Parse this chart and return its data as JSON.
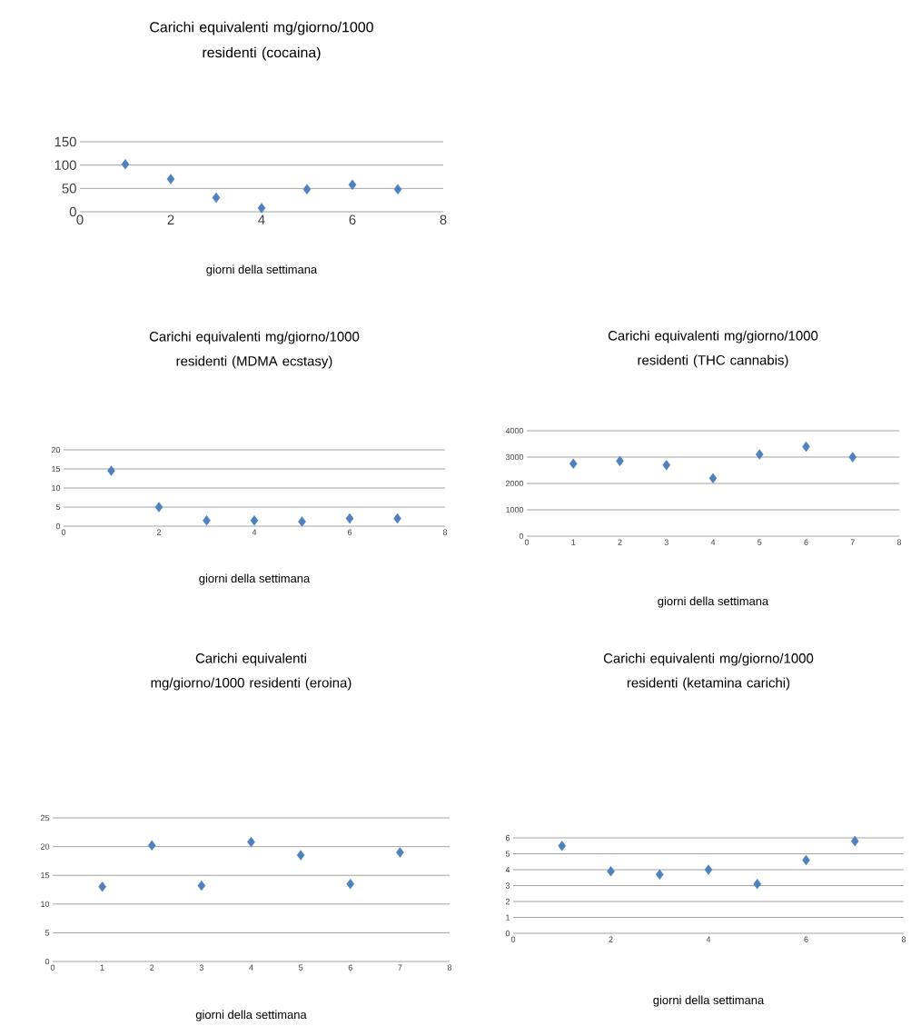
{
  "chart_data": [
    {
      "type": "scatter",
      "title": "Carichi equivalenti mg/giorno/1000 residenti (cocaina)",
      "xlabel": "giorni della settimana",
      "x": [
        1,
        2,
        3,
        4,
        5,
        6,
        7
      ],
      "values": [
        102,
        70,
        30,
        8,
        48,
        58,
        48
      ],
      "color": "#4f81bd",
      "marker": "diamond",
      "grid": "y",
      "xlim": [
        0,
        8
      ],
      "xticks": [
        0,
        2,
        4,
        6,
        8
      ],
      "ylim": [
        0,
        150
      ],
      "yticks": [
        0,
        50,
        100,
        150
      ]
    },
    {
      "type": "scatter",
      "title": "Carichi equivalenti mg/giorno/1000 residenti (MDMA ecstasy)",
      "xlabel": "giorni della settimana",
      "x": [
        1,
        2,
        3,
        4,
        5,
        6,
        7
      ],
      "values": [
        14.5,
        5,
        1.5,
        1.5,
        1.2,
        2,
        2
      ],
      "color": "#4f81bd",
      "marker": "diamond",
      "grid": "y",
      "xlim": [
        0,
        8
      ],
      "xticks": [
        0,
        2,
        4,
        6,
        8
      ],
      "ylim": [
        0,
        20
      ],
      "yticks": [
        0,
        5,
        10,
        15,
        20
      ]
    },
    {
      "type": "scatter",
      "title": "Carichi equivalenti mg/giorno/1000 residenti (THC cannabis)",
      "xlabel": "giorni della settimana",
      "x": [
        1,
        2,
        3,
        4,
        5,
        6,
        7
      ],
      "values": [
        2750,
        2850,
        2700,
        2200,
        3100,
        3400,
        3000
      ],
      "color": "#4f81bd",
      "marker": "diamond",
      "grid": "y",
      "xlim": [
        0,
        8
      ],
      "xticks": [
        0,
        1,
        2,
        3,
        4,
        5,
        6,
        7,
        8
      ],
      "ylim": [
        0,
        4000
      ],
      "yticks": [
        0,
        1000,
        2000,
        3000,
        4000
      ]
    },
    {
      "type": "scatter",
      "title": "Carichi equivalenti mg/giorno/1000 residenti (eroina)",
      "xlabel": "giorni della settimana",
      "x": [
        1,
        2,
        3,
        4,
        5,
        6,
        7
      ],
      "values": [
        13,
        20.2,
        13.2,
        20.8,
        18.5,
        13.5,
        19
      ],
      "color": "#4f81bd",
      "marker": "diamond",
      "grid": "y",
      "xlim": [
        0,
        8
      ],
      "xticks": [
        0,
        1,
        2,
        3,
        4,
        5,
        6,
        7,
        8
      ],
      "ylim": [
        0,
        25
      ],
      "yticks": [
        0,
        5,
        10,
        15,
        20,
        25
      ]
    },
    {
      "type": "scatter",
      "title": "Carichi equivalenti mg/giorno/1000 residenti (ketamina carichi)",
      "xlabel": "giorni della settimana",
      "x": [
        1,
        2,
        3,
        4,
        5,
        6,
        7
      ],
      "values": [
        5.5,
        3.9,
        3.7,
        4,
        3.1,
        4.6,
        5.8
      ],
      "color": "#4f81bd",
      "marker": "diamond",
      "grid": "y",
      "xlim": [
        0,
        8
      ],
      "xticks": [
        0,
        2,
        4,
        6,
        8
      ],
      "ylim": [
        0,
        6
      ],
      "yticks": [
        0,
        1,
        2,
        3,
        4,
        5,
        6
      ]
    }
  ]
}
